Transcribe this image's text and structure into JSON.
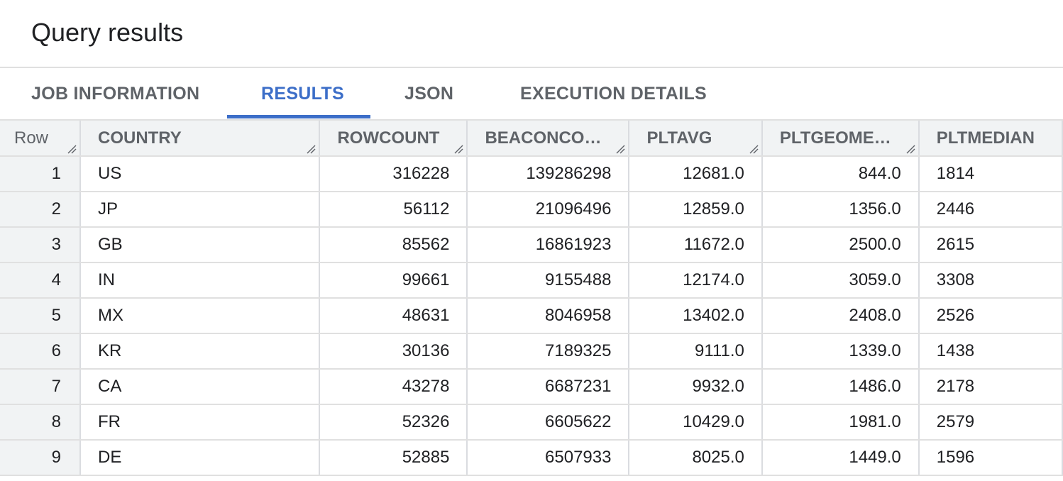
{
  "header": {
    "title": "Query results"
  },
  "tabs": [
    {
      "label": "JOB INFORMATION",
      "active": false
    },
    {
      "label": "RESULTS",
      "active": true
    },
    {
      "label": "JSON",
      "active": false
    },
    {
      "label": "EXECUTION DETAILS",
      "active": false
    }
  ],
  "colors": {
    "accent": "#3c6ec8",
    "header_bg": "#f1f3f4",
    "border": "#e0e0e0"
  },
  "table": {
    "columns": [
      "Row",
      "COUNTRY",
      "ROWCOUNT",
      "BEACONCO…",
      "PLTAVG",
      "PLTGEOME…",
      "PLTMEDIAN"
    ],
    "rows": [
      [
        "1",
        "US",
        "316228",
        "139286298",
        "12681.0",
        "844.0",
        "1814"
      ],
      [
        "2",
        "JP",
        "56112",
        "21096496",
        "12859.0",
        "1356.0",
        "2446"
      ],
      [
        "3",
        "GB",
        "85562",
        "16861923",
        "11672.0",
        "2500.0",
        "2615"
      ],
      [
        "4",
        "IN",
        "99661",
        "9155488",
        "12174.0",
        "3059.0",
        "3308"
      ],
      [
        "5",
        "MX",
        "48631",
        "8046958",
        "13402.0",
        "2408.0",
        "2526"
      ],
      [
        "6",
        "KR",
        "30136",
        "7189325",
        "9111.0",
        "1339.0",
        "1438"
      ],
      [
        "7",
        "CA",
        "43278",
        "6687231",
        "9932.0",
        "1486.0",
        "2178"
      ],
      [
        "8",
        "FR",
        "52326",
        "6605622",
        "10429.0",
        "1981.0",
        "2579"
      ],
      [
        "9",
        "DE",
        "52885",
        "6507933",
        "8025.0",
        "1449.0",
        "1596"
      ]
    ]
  }
}
